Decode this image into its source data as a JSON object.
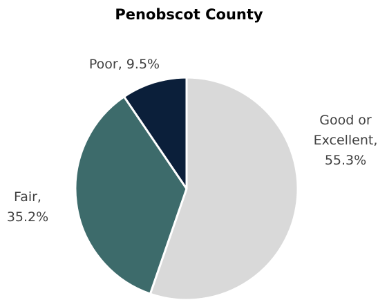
{
  "chart_data": {
    "type": "pie",
    "title": "Penobscot County",
    "slices": [
      {
        "label": "Good or Excellent",
        "value": 55.3,
        "display": "55.3%",
        "color": "#d9d9d9"
      },
      {
        "label": "Fair",
        "value": 35.2,
        "display": "35.2%",
        "color": "#3d6b6b"
      },
      {
        "label": "Poor",
        "value": 9.5,
        "display": "9.5%",
        "color": "#0b1f3a"
      }
    ],
    "data_labels": [
      {
        "lines": [
          "Good or",
          "Excellent,",
          "55.3%"
        ]
      },
      {
        "lines": [
          "Fair,",
          "35.2%"
        ]
      },
      {
        "lines": [
          "Poor, 9.5%"
        ]
      }
    ]
  }
}
